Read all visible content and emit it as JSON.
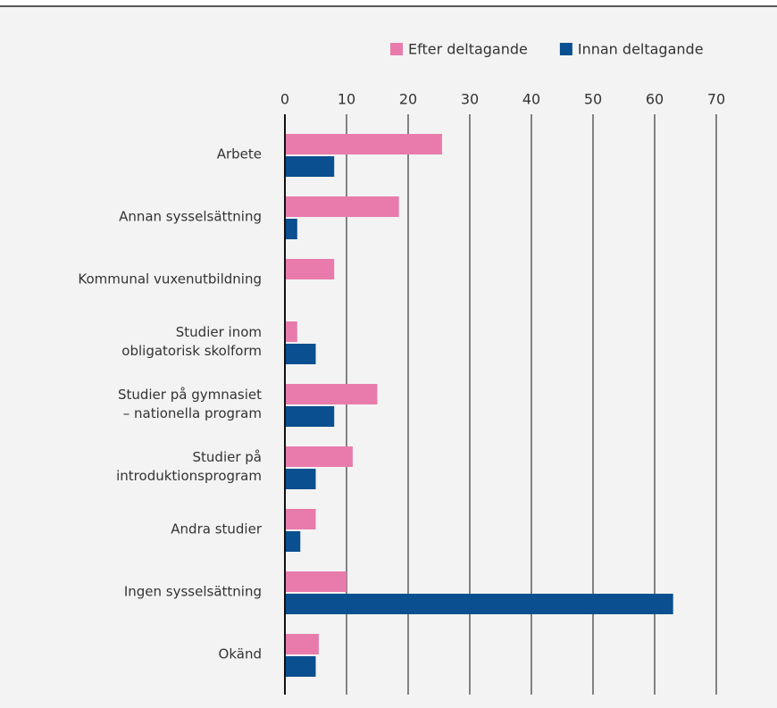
{
  "chart_data": {
    "type": "bar",
    "orientation": "horizontal",
    "categories": [
      "Arbete",
      "Annan sysselsättning",
      "Kommunal vuxenutbildning",
      "Studier inom\nobligatorisk skolform",
      "Studier på gymnasiet\n– nationella program",
      "Studier på\nintroduktionsprogram",
      "Andra studier",
      "Ingen sysselsättning",
      "Okänd"
    ],
    "series": [
      {
        "name": "Efter deltagande",
        "color": "#e87bac",
        "values": [
          25.5,
          18.5,
          8,
          2,
          15,
          11,
          5,
          10,
          5.5
        ]
      },
      {
        "name": "Innan deltagande",
        "color": "#0a4f8f",
        "values": [
          8,
          2,
          0,
          5,
          8,
          5,
          2.5,
          63,
          5
        ]
      }
    ],
    "xlim": [
      0,
      70
    ],
    "xticks": [
      0,
      10,
      20,
      30,
      40,
      50,
      60,
      70
    ],
    "grid": true,
    "legend": "top-right"
  }
}
